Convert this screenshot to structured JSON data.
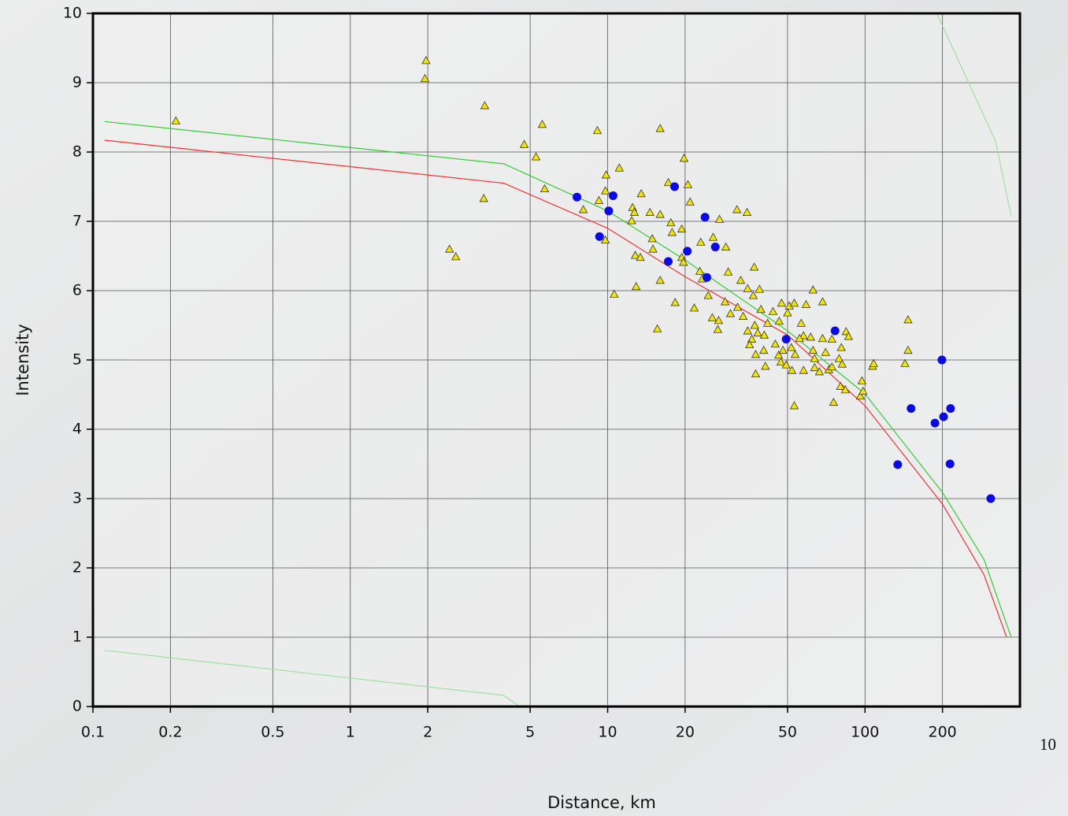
{
  "chart_data": {
    "type": "scatter",
    "xscale": "log",
    "xlabel": "Distance, km",
    "ylabel": "Intensity",
    "xlim": [
      0.1,
      400
    ],
    "ylim": [
      0,
      10
    ],
    "xticks": [
      0.1,
      0.2,
      0.5,
      1,
      2,
      5,
      10,
      20,
      50,
      100,
      200
    ],
    "yticks": [
      0,
      1,
      2,
      3,
      4,
      5,
      6,
      7,
      8,
      9,
      10
    ],
    "grid": true,
    "annotations": [
      "10"
    ],
    "series": [
      {
        "marker": "line",
        "color": "#ee3333",
        "x": [
          0.111,
          3.95,
          10,
          20,
          50,
          100,
          200,
          290,
          355
        ],
        "values": [
          8.17,
          7.55,
          6.9,
          6.2,
          5.36,
          4.34,
          2.92,
          1.9,
          1.0
        ]
      },
      {
        "marker": "line",
        "color": "#33cc33",
        "x": [
          0.111,
          3.95,
          10,
          20,
          50,
          100,
          200,
          290,
          370
        ],
        "values": [
          8.44,
          7.83,
          7.15,
          6.44,
          5.42,
          4.51,
          3.09,
          2.12,
          1.0
        ]
      },
      {
        "marker": "line",
        "color": "#9fe09f",
        "x": [
          0.111,
          3.95,
          4.54
        ],
        "values": [
          0.81,
          0.16,
          0
        ]
      },
      {
        "marker": "line",
        "color": "#9fe09f",
        "x": [
          190,
          322,
          370
        ],
        "values": [
          10,
          8.15,
          7.07
        ]
      },
      {
        "marker": "triangle",
        "color": "#f2e600",
        "x": [
          0.21,
          1.97,
          1.95,
          3.33,
          3.3,
          2.43,
          2.57,
          4.74,
          5.27,
          5.57,
          5.69,
          9.12,
          9.86,
          9.8,
          8.04,
          9.25,
          11.1,
          9.8,
          10.6,
          16.0,
          19.8,
          17.2,
          20.5,
          20.9,
          12.5,
          12.7,
          13.5,
          14.6,
          16.0,
          12.4,
          17.6,
          17.8,
          19.4,
          14.9,
          15.0,
          12.8,
          13.4,
          19.4,
          19.7,
          25.7,
          27.2,
          23.0,
          28.8,
          31.8,
          34.8,
          12.9,
          16,
          18.3,
          15.6,
          22.8,
          23.3,
          24.6,
          21.7,
          25.5,
          27.0,
          26.8,
          28.6,
          29.4,
          32.9,
          30.0,
          32.0,
          33.6,
          37.1,
          35.0,
          36.8,
          38.9,
          35,
          36.3,
          37.3,
          38.3,
          35.6,
          37.6,
          40.4,
          40.6,
          41.8,
          39.4,
          43.9,
          46.4,
          44.8,
          41,
          37.6,
          47.1,
          49.4,
          46.2,
          48,
          51.7,
          53.5,
          52,
          50.8,
          47.4,
          53.1,
          50,
          59,
          56.5,
          57.7,
          55.7,
          61.5,
          53.1,
          57.7,
          62.8,
          62.8,
          68.4,
          63.7,
          63.7,
          66.5,
          70.3,
          72.3,
          74.4,
          68.4,
          74.4,
          80.9,
          79.3,
          81.5,
          80.3,
          83.8,
          84.4,
          86.3,
          75.5,
          95.9,
          98.3,
          97.3,
          107,
          108,
          143,
          147,
          147
        ],
        "values": [
          8.45,
          9.32,
          9.06,
          8.67,
          7.33,
          6.6,
          6.49,
          8.11,
          7.93,
          8.4,
          7.47,
          8.31,
          7.67,
          7.44,
          7.17,
          7.3,
          7.77,
          6.73,
          5.95,
          8.34,
          7.91,
          7.56,
          7.53,
          7.28,
          7.2,
          7.13,
          7.4,
          7.13,
          7.1,
          7.01,
          6.98,
          6.84,
          6.89,
          6.75,
          6.6,
          6.51,
          6.48,
          6.48,
          6.41,
          6.77,
          7.03,
          6.7,
          6.63,
          7.17,
          7.13,
          6.06,
          6.15,
          5.83,
          5.45,
          6.28,
          6.17,
          5.93,
          5.75,
          5.61,
          5.57,
          5.44,
          5.84,
          6.27,
          6.15,
          5.67,
          5.76,
          5.63,
          6.34,
          6.03,
          5.93,
          6.02,
          5.42,
          5.3,
          5.5,
          5.39,
          5.22,
          5.08,
          5.14,
          5.36,
          5.53,
          5.73,
          5.7,
          5.56,
          5.23,
          4.91,
          4.8,
          4.97,
          4.93,
          5.07,
          5.14,
          5.18,
          5.08,
          4.85,
          5.78,
          5.82,
          5.82,
          5.68,
          5.8,
          5.53,
          5.35,
          5.31,
          5.33,
          4.34,
          4.85,
          5.14,
          6.01,
          5.84,
          5.02,
          4.89,
          4.83,
          5.11,
          4.86,
          4.9,
          5.31,
          5.3,
          5.18,
          5.02,
          4.94,
          4.62,
          4.57,
          5.41,
          5.34,
          4.39,
          4.48,
          4.55,
          4.7,
          4.91,
          4.95,
          4.95,
          5.58,
          5.14
        ]
      },
      {
        "marker": "circle",
        "color": "#0a0ae6",
        "x": [
          7.6,
          9.3,
          10.1,
          10.5,
          18.2,
          17.2,
          20.4,
          23.9,
          26.2,
          24.3,
          49.4,
          76.5,
          134,
          151,
          199,
          187,
          202,
          215,
          214,
          308
        ],
        "values": [
          7.35,
          6.78,
          7.15,
          7.37,
          7.5,
          6.42,
          6.57,
          7.06,
          6.63,
          6.19,
          5.3,
          5.42,
          3.49,
          4.3,
          5.0,
          4.09,
          4.18,
          4.3,
          3.5,
          3.0
        ]
      }
    ]
  }
}
